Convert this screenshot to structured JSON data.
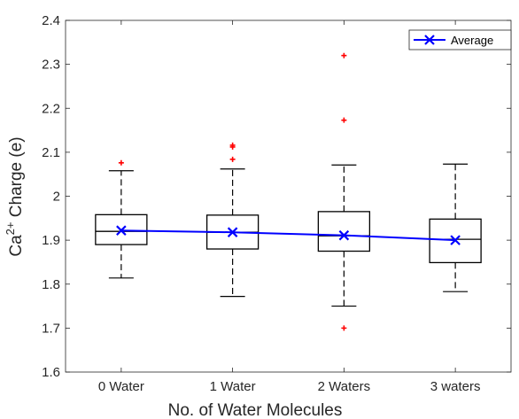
{
  "chart_data": {
    "type": "box",
    "xlabel": "No. of Water Molecules",
    "ylabel_base": "Ca",
    "ylabel_sup": "2+",
    "ylabel_rest": " Charge (e)",
    "ylim": [
      1.6,
      2.4
    ],
    "yticks": [
      1.6,
      1.7,
      1.8,
      1.9,
      2.0,
      2.1,
      2.2,
      2.3,
      2.4
    ],
    "ytick_labels": [
      "1.6",
      "1.7",
      "1.8",
      "1.9",
      "2",
      "2.1",
      "2.2",
      "2.3",
      "2.4"
    ],
    "categories": [
      "0 Water",
      "1 Water",
      "2 Waters",
      "3 waters"
    ],
    "boxes": [
      {
        "whisker_low": 1.814,
        "q1": 1.89,
        "median": 1.92,
        "q3": 1.958,
        "whisker_high": 2.058,
        "outliers": [
          2.076
        ]
      },
      {
        "whisker_low": 1.772,
        "q1": 1.88,
        "median": 1.918,
        "q3": 1.957,
        "whisker_high": 2.062,
        "outliers": [
          2.084,
          2.112,
          2.116
        ]
      },
      {
        "whisker_low": 1.75,
        "q1": 1.875,
        "median": 1.91,
        "q3": 1.965,
        "whisker_high": 2.071,
        "outliers": [
          1.7,
          2.173,
          2.32
        ]
      },
      {
        "whisker_low": 1.783,
        "q1": 1.849,
        "median": 1.902,
        "q3": 1.948,
        "whisker_high": 2.073,
        "outliers": []
      }
    ],
    "series": [
      {
        "name": "Average",
        "values": [
          1.922,
          1.918,
          1.911,
          1.9
        ],
        "color": "#0000ff",
        "marker": "x"
      }
    ],
    "legend_position": "top-right",
    "outlier_color": "#ff0000",
    "box_color": "#000000"
  }
}
